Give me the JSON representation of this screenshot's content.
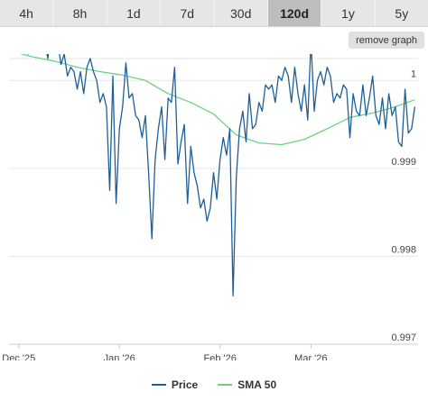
{
  "tabs": [
    {
      "label": "4h",
      "active": false
    },
    {
      "label": "8h",
      "active": false
    },
    {
      "label": "1d",
      "active": false
    },
    {
      "label": "7d",
      "active": false
    },
    {
      "label": "30d",
      "active": false
    },
    {
      "label": "120d",
      "active": true
    },
    {
      "label": "1y",
      "active": false
    },
    {
      "label": "5y",
      "active": false
    }
  ],
  "remove_graph_label": "remove graph",
  "legend": {
    "price_label": "Price",
    "sma_label": "SMA 50"
  },
  "colors": {
    "price": "#1f5f99",
    "sma": "#6fd17f",
    "grid": "#e6e6e6",
    "axis": "#cccccc"
  },
  "chart_data": {
    "type": "line",
    "title": "",
    "xlabel": "",
    "ylabel": "",
    "xlim": [
      "2025-11-28",
      "2026-04-03"
    ],
    "ylim": [
      0.997,
      1.0003
    ],
    "x_ticks": [
      {
        "date": "2025-12-01",
        "label": "Dec '25"
      },
      {
        "date": "2026-01-01",
        "label": "Jan '26"
      },
      {
        "date": "2026-02-01",
        "label": "Feb '26"
      },
      {
        "date": "2026-03-01",
        "label": "Mar '26"
      }
    ],
    "y_ticks": [
      {
        "value": 1.0,
        "label": "1"
      },
      {
        "value": 0.999,
        "label": "0.999"
      },
      {
        "value": 0.998,
        "label": "0.998"
      },
      {
        "value": 0.997,
        "label": "0.997"
      }
    ],
    "grid": true,
    "legend_position": "bottom",
    "series": [
      {
        "name": "Price",
        "x": [
          "2025-11-29",
          "2025-11-30",
          "2025-12-01",
          "2025-12-02",
          "2025-12-03",
          "2025-12-04",
          "2025-12-05",
          "2025-12-06",
          "2025-12-07",
          "2025-12-08",
          "2025-12-09",
          "2025-12-10",
          "2025-12-11",
          "2025-12-12",
          "2025-12-13",
          "2025-12-14",
          "2025-12-15",
          "2025-12-16",
          "2025-12-17",
          "2025-12-18",
          "2025-12-19",
          "2025-12-20",
          "2025-12-21",
          "2025-12-22",
          "2025-12-23",
          "2025-12-24",
          "2025-12-25",
          "2025-12-26",
          "2025-12-27",
          "2025-12-28",
          "2025-12-29",
          "2025-12-30",
          "2025-12-31",
          "2026-01-01",
          "2026-01-02",
          "2026-01-03",
          "2026-01-04",
          "2026-01-05",
          "2026-01-06",
          "2026-01-07",
          "2026-01-08",
          "2026-01-09",
          "2026-01-10",
          "2026-01-11",
          "2026-01-12",
          "2026-01-13",
          "2026-01-14",
          "2026-01-15",
          "2026-01-16",
          "2026-01-17",
          "2026-01-18",
          "2026-01-19",
          "2026-01-20",
          "2026-01-21",
          "2026-01-22",
          "2026-01-23",
          "2026-01-24",
          "2026-01-25",
          "2026-01-26",
          "2026-01-27",
          "2026-01-28",
          "2026-01-29",
          "2026-01-30",
          "2026-01-31",
          "2026-02-01",
          "2026-02-02",
          "2026-02-03",
          "2026-02-04",
          "2026-02-05",
          "2026-02-06",
          "2026-02-07",
          "2026-02-08",
          "2026-02-09",
          "2026-02-10",
          "2026-02-11",
          "2026-02-12",
          "2026-02-13",
          "2026-02-14",
          "2026-02-15",
          "2026-02-16",
          "2026-02-17",
          "2026-02-18",
          "2026-02-19",
          "2026-02-20",
          "2026-02-21",
          "2026-02-22",
          "2026-02-23",
          "2026-02-24",
          "2026-02-25",
          "2026-02-26",
          "2026-02-27",
          "2026-02-28",
          "2026-03-01",
          "2026-03-02",
          "2026-03-03",
          "2026-03-04",
          "2026-03-05",
          "2026-03-06",
          "2026-03-07",
          "2026-03-08",
          "2026-03-09",
          "2026-03-10",
          "2026-03-11",
          "2026-03-12",
          "2026-03-13",
          "2026-03-14",
          "2026-03-15",
          "2026-03-16",
          "2026-03-17",
          "2026-03-18",
          "2026-03-19",
          "2026-03-20",
          "2026-03-21",
          "2026-03-22",
          "2026-03-23",
          "2026-03-24",
          "2026-03-25",
          "2026-03-26",
          "2026-03-27",
          "2026-03-28",
          "2026-03-29",
          "2026-03-30",
          "2026-03-31",
          "2026-04-01",
          "2026-04-02"
        ],
        "values": [
          1.00035,
          1.00045,
          1.0005,
          1.0004,
          1.00055,
          1.0003,
          1.00048,
          1.00062,
          1.00035,
          1.00042,
          1.0004,
          1.00025,
          1.00065,
          1.0004,
          1.00045,
          1.00018,
          1.0003,
          1.00005,
          1.00015,
          1.0001,
          0.9999,
          1.0001,
          0.99985,
          1.00015,
          1.00025,
          1.0001,
          1.0,
          0.99975,
          0.99985,
          0.9997,
          0.99875,
          1.00005,
          0.9986,
          0.99945,
          0.9997,
          1.0002,
          0.9998,
          0.99985,
          0.9996,
          0.99955,
          0.99935,
          0.9996,
          0.99895,
          0.9982,
          0.9991,
          0.99945,
          0.9997,
          0.9991,
          0.9998,
          0.99975,
          1.00015,
          0.99905,
          0.9993,
          0.9995,
          0.9986,
          0.99925,
          0.99895,
          0.9988,
          0.99855,
          0.99865,
          0.9984,
          0.99855,
          0.99895,
          0.99865,
          0.9991,
          0.99935,
          0.99915,
          0.99945,
          0.99755,
          0.9989,
          0.99945,
          0.99965,
          0.9993,
          0.99985,
          0.99945,
          0.9995,
          0.99975,
          0.99965,
          0.99995,
          0.9999,
          0.99995,
          0.99975,
          1.00005,
          1.0,
          1.00015,
          1.00005,
          0.99975,
          1.00015,
          0.99985,
          0.99965,
          0.99995,
          0.99955,
          1.00045,
          0.99965,
          1.0,
          1.0001,
          0.99995,
          1.00015,
          1.00005,
          0.99975,
          0.99985,
          0.9998,
          0.99995,
          0.9999,
          0.99935,
          0.99985,
          0.99965,
          0.9996,
          0.99995,
          0.9996,
          0.9998,
          1.00005,
          0.9996,
          0.9995,
          0.9998,
          0.99945,
          0.99985,
          0.9996,
          0.9997,
          0.9993,
          0.99925,
          0.9999,
          0.9994,
          0.99945,
          0.9997
        ]
      },
      {
        "name": "SMA 50",
        "x": [
          "2025-11-29",
          "2025-12-05",
          "2025-12-12",
          "2025-12-19",
          "2025-12-26",
          "2026-01-02",
          "2026-01-09",
          "2026-01-16",
          "2026-01-23",
          "2026-01-30",
          "2026-02-06",
          "2026-02-13",
          "2026-02-20",
          "2026-02-27",
          "2026-03-06",
          "2026-03-13",
          "2026-03-20",
          "2026-03-27",
          "2026-04-02"
        ],
        "values": [
          1.00033,
          1.00027,
          1.00022,
          1.00015,
          1.0001,
          1.00006,
          1.0,
          0.99985,
          0.99975,
          0.99962,
          0.99938,
          0.99929,
          0.99927,
          0.99933,
          0.99945,
          0.99958,
          0.99963,
          0.9997,
          0.99978
        ]
      }
    ]
  }
}
